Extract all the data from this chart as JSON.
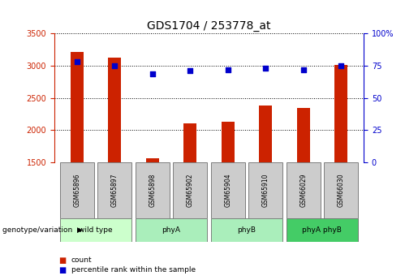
{
  "title": "GDS1704 / 253778_at",
  "samples": [
    "GSM65896",
    "GSM65897",
    "GSM65898",
    "GSM65902",
    "GSM65904",
    "GSM65910",
    "GSM66029",
    "GSM66030"
  ],
  "counts": [
    3220,
    3130,
    1560,
    2110,
    2130,
    2380,
    2340,
    3010
  ],
  "percentile_ranks": [
    78,
    75,
    69,
    71,
    72,
    73,
    72,
    75
  ],
  "group_boundaries": [
    {
      "start": 0,
      "end": 1,
      "label": "wild type",
      "color": "#ccffcc"
    },
    {
      "start": 2,
      "end": 3,
      "label": "phyA",
      "color": "#aaeebb"
    },
    {
      "start": 4,
      "end": 5,
      "label": "phyB",
      "color": "#aaeebb"
    },
    {
      "start": 6,
      "end": 7,
      "label": "phyA phyB",
      "color": "#44cc66"
    }
  ],
  "ylim_left": [
    1500,
    3500
  ],
  "ylim_right": [
    0,
    100
  ],
  "yticks_left": [
    1500,
    2000,
    2500,
    3000,
    3500
  ],
  "yticks_right": [
    0,
    25,
    50,
    75,
    100
  ],
  "bar_color": "#cc2200",
  "dot_color": "#0000cc",
  "bar_width": 0.35,
  "sample_box_color": "#cccccc",
  "title_fontsize": 10,
  "tick_fontsize": 7,
  "axis_tick_color_left": "#cc2200",
  "axis_tick_color_right": "#0000cc"
}
